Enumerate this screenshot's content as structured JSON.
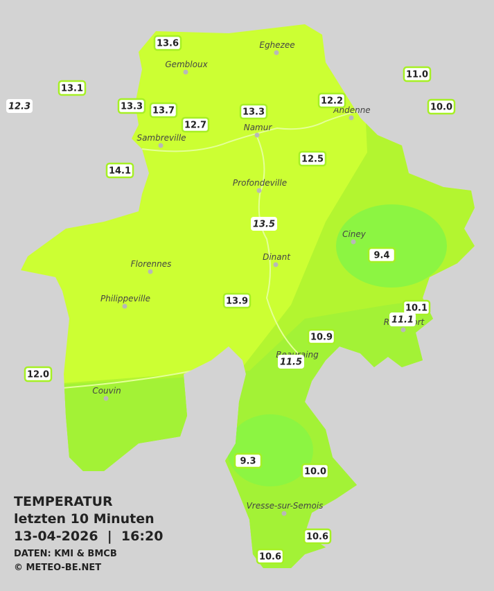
{
  "header": {
    "title": "TEMPERATUR",
    "subtitle": "letzten 10 Minuten",
    "datetime": "13-04-2026  |  16:20",
    "source": "DATEN: KMI & BMCB",
    "copyright": "© METEO-BE.NET"
  },
  "cities": [
    "Eghezee",
    "Gembloux",
    "Andenne",
    "Namur",
    "Sambreville",
    "Profondeville",
    "Ciney",
    "Dinant",
    "Florennes",
    "Philippeville",
    "Rochefort",
    "Beauraing",
    "Couvin",
    "Vresse-sur-Semois"
  ],
  "readings": [
    "13.6",
    "13.1",
    "13.3",
    "13.7",
    "12.7",
    "13.3",
    "12.2",
    "11.0",
    "10.0",
    "14.1",
    "12.5",
    "9.4",
    "13.9",
    "10.1",
    "10.9",
    "12.0",
    "9.3",
    "10.0",
    "10.6",
    "10.6"
  ],
  "secondary_readings": [
    "12.3",
    "13.5",
    "11.1",
    "11.5"
  ]
}
